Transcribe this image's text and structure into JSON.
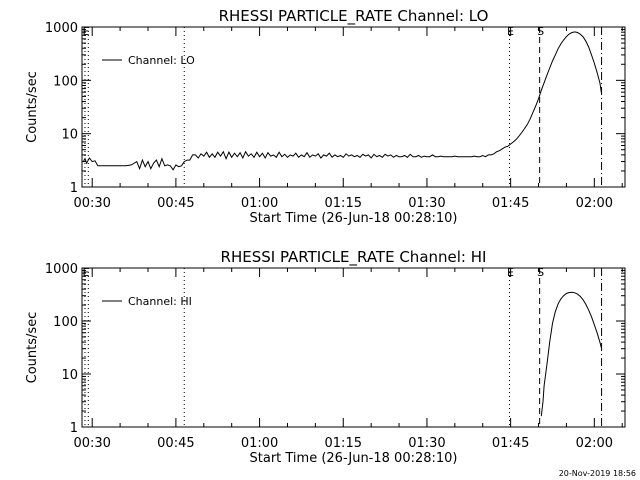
{
  "footer": {
    "timestamp": "20-Nov-2019 18:56"
  },
  "chart_data": [
    {
      "type": "line",
      "title": "RHESSI PARTICLE_RATE Channel: LO",
      "xlabel": "Start Time (26-Jun-18 00:28:10)",
      "ylabel": "Counts/sec",
      "yscale": "log",
      "ylim": [
        1,
        1000
      ],
      "xlim_minutes": [
        28.17,
        125.5
      ],
      "yticks": [
        {
          "v": 1,
          "label": "1"
        },
        {
          "v": 10,
          "label": "10"
        },
        {
          "v": 100,
          "label": "100"
        },
        {
          "v": 1000,
          "label": "1000"
        }
      ],
      "xticks": [
        {
          "m": 30,
          "label": "00:30"
        },
        {
          "m": 45,
          "label": "00:45"
        },
        {
          "m": 60,
          "label": "01:00"
        },
        {
          "m": 75,
          "label": "01:15"
        },
        {
          "m": 90,
          "label": "01:30"
        },
        {
          "m": 105,
          "label": "01:45"
        },
        {
          "m": 120,
          "label": "02:00"
        }
      ],
      "legend": {
        "label": "Channel: LO",
        "position": "top-left"
      },
      "markers": [
        {
          "m": 28.7,
          "label": "E",
          "style": "dotted"
        },
        {
          "m": 29.3,
          "label": "",
          "style": "dotted"
        },
        {
          "m": 46.5,
          "label": "",
          "style": "dotted"
        },
        {
          "m": 104.8,
          "label": "E",
          "style": "dotted"
        },
        {
          "m": 110.2,
          "label": "S",
          "style": "dashed"
        },
        {
          "m": 121.3,
          "label": "",
          "style": "dashdot"
        }
      ],
      "series": [
        {
          "name": "Channel: LO",
          "points": [
            [
              28.4,
              3
            ],
            [
              28.7,
              3.4
            ],
            [
              29.0,
              2.8
            ],
            [
              29.5,
              3.5
            ],
            [
              30.0,
              3.0
            ],
            [
              30.5,
              3.1
            ],
            [
              31.0,
              2.5
            ],
            [
              31.5,
              2.5
            ],
            [
              32.0,
              2.5
            ],
            [
              33.0,
              2.5
            ],
            [
              34.0,
              2.5
            ],
            [
              35.0,
              2.5
            ],
            [
              36.0,
              2.5
            ],
            [
              37.0,
              2.6
            ],
            [
              38.0,
              3.0
            ],
            [
              38.5,
              2.2
            ],
            [
              39.0,
              3.2
            ],
            [
              39.5,
              2.4
            ],
            [
              40.0,
              3.0
            ],
            [
              40.5,
              2.2
            ],
            [
              41.0,
              2.8
            ],
            [
              41.5,
              3.2
            ],
            [
              42.0,
              2.4
            ],
            [
              42.5,
              3.4
            ],
            [
              43.0,
              2.5
            ],
            [
              43.5,
              2.6
            ],
            [
              44.0,
              2.5
            ],
            [
              44.5,
              2.1
            ],
            [
              45.0,
              2.6
            ],
            [
              45.5,
              2.4
            ],
            [
              46.0,
              2.5
            ],
            [
              46.5,
              3.0
            ],
            [
              47.0,
              3.2
            ],
            [
              47.5,
              3.2
            ],
            [
              48.0,
              4.0
            ],
            [
              48.5,
              4.0
            ],
            [
              49.0,
              3.5
            ],
            [
              49.5,
              4.2
            ],
            [
              50.0,
              3.8
            ],
            [
              50.5,
              4.5
            ],
            [
              51.0,
              3.6
            ],
            [
              51.5,
              4.2
            ],
            [
              52.0,
              3.6
            ],
            [
              52.5,
              4.5
            ],
            [
              53.0,
              3.8
            ],
            [
              53.5,
              4.6
            ],
            [
              54.0,
              3.4
            ],
            [
              54.5,
              4.5
            ],
            [
              55.0,
              3.6
            ],
            [
              55.5,
              4.3
            ],
            [
              56.0,
              3.7
            ],
            [
              56.5,
              4.4
            ],
            [
              57.0,
              3.5
            ],
            [
              57.5,
              4.6
            ],
            [
              58.0,
              3.8
            ],
            [
              58.5,
              4.2
            ],
            [
              59.0,
              3.6
            ],
            [
              59.5,
              4.5
            ],
            [
              60.0,
              3.7
            ],
            [
              60.5,
              4.3
            ],
            [
              61.0,
              3.5
            ],
            [
              61.5,
              4.4
            ],
            [
              62.0,
              3.8
            ],
            [
              62.5,
              4.0
            ],
            [
              63.0,
              3.6
            ],
            [
              63.5,
              4.5
            ],
            [
              64.0,
              3.7
            ],
            [
              64.5,
              4.1
            ],
            [
              65.0,
              3.6
            ],
            [
              65.5,
              4.0
            ],
            [
              66.0,
              3.8
            ],
            [
              66.5,
              4.3
            ],
            [
              67.0,
              3.6
            ],
            [
              67.5,
              4.0
            ],
            [
              68.0,
              3.7
            ],
            [
              68.5,
              4.4
            ],
            [
              69.0,
              3.6
            ],
            [
              69.5,
              4.0
            ],
            [
              70.0,
              3.8
            ],
            [
              70.5,
              4.2
            ],
            [
              71.0,
              3.5
            ],
            [
              71.5,
              4.0
            ],
            [
              72.0,
              3.8
            ],
            [
              72.5,
              4.3
            ],
            [
              73.0,
              3.6
            ],
            [
              73.5,
              4.0
            ],
            [
              74.0,
              3.7
            ],
            [
              74.5,
              3.9
            ],
            [
              75.0,
              3.6
            ],
            [
              75.5,
              4.2
            ],
            [
              76.0,
              3.8
            ],
            [
              76.5,
              4.0
            ],
            [
              77.0,
              3.7
            ],
            [
              77.5,
              3.9
            ],
            [
              78.0,
              3.6
            ],
            [
              78.5,
              4.1
            ],
            [
              79.0,
              3.8
            ],
            [
              79.5,
              4.0
            ],
            [
              80.0,
              3.5
            ],
            [
              80.5,
              4.1
            ],
            [
              81.0,
              3.7
            ],
            [
              81.5,
              3.9
            ],
            [
              82.0,
              3.6
            ],
            [
              82.5,
              4.1
            ],
            [
              83.0,
              3.8
            ],
            [
              83.5,
              4.0
            ],
            [
              84.0,
              3.6
            ],
            [
              84.5,
              3.9
            ],
            [
              85.0,
              3.7
            ],
            [
              85.5,
              3.7
            ],
            [
              86.0,
              3.9
            ],
            [
              86.5,
              3.6
            ],
            [
              87.0,
              4.1
            ],
            [
              87.5,
              3.7
            ],
            [
              88.0,
              3.7
            ],
            [
              88.5,
              3.9
            ],
            [
              89.0,
              3.6
            ],
            [
              89.5,
              3.8
            ],
            [
              90.0,
              3.7
            ],
            [
              90.5,
              3.7
            ],
            [
              91.0,
              4.0
            ],
            [
              91.5,
              3.7
            ],
            [
              92.0,
              3.7
            ],
            [
              92.5,
              3.8
            ],
            [
              93.0,
              3.7
            ],
            [
              93.5,
              3.7
            ],
            [
              94.0,
              3.7
            ],
            [
              94.5,
              3.7
            ],
            [
              95.0,
              3.8
            ],
            [
              95.5,
              3.7
            ],
            [
              96.0,
              3.7
            ],
            [
              96.5,
              3.7
            ],
            [
              97.0,
              3.7
            ],
            [
              97.5,
              3.7
            ],
            [
              98.0,
              3.7
            ],
            [
              98.5,
              3.8
            ],
            [
              99.0,
              3.7
            ],
            [
              99.5,
              3.7
            ],
            [
              100.0,
              3.9
            ],
            [
              100.5,
              3.7
            ],
            [
              101.0,
              4.0
            ],
            [
              101.5,
              4.0
            ],
            [
              102.0,
              4.2
            ],
            [
              102.5,
              4.6
            ],
            [
              103.0,
              4.8
            ],
            [
              103.5,
              5.2
            ],
            [
              104.0,
              5.6
            ],
            [
              104.5,
              5.8
            ],
            [
              105.0,
              6.4
            ],
            [
              105.5,
              7.0
            ],
            [
              106.0,
              7.8
            ],
            [
              106.5,
              9.0
            ],
            [
              107.0,
              10.5
            ],
            [
              107.5,
              12.5
            ],
            [
              108.0,
              15
            ],
            [
              108.5,
              19
            ],
            [
              109.0,
              25
            ],
            [
              109.5,
              33
            ],
            [
              110.0,
              45
            ],
            [
              110.5,
              65
            ],
            [
              111.0,
              90
            ],
            [
              111.5,
              125
            ],
            [
              112.0,
              170
            ],
            [
              112.5,
              230
            ],
            [
              113.0,
              300
            ],
            [
              113.5,
              390
            ],
            [
              114.0,
              480
            ],
            [
              114.5,
              570
            ],
            [
              115.0,
              660
            ],
            [
              115.5,
              740
            ],
            [
              116.0,
              790
            ],
            [
              116.5,
              810
            ],
            [
              117.0,
              790
            ],
            [
              117.5,
              730
            ],
            [
              118.0,
              650
            ],
            [
              118.5,
              540
            ],
            [
              119.0,
              420
            ],
            [
              119.5,
              300
            ],
            [
              120.0,
              210
            ],
            [
              120.5,
              140
            ],
            [
              121.0,
              90
            ],
            [
              121.3,
              55
            ]
          ]
        }
      ]
    },
    {
      "type": "line",
      "title": "RHESSI PARTICLE_RATE Channel: HI",
      "xlabel": "Start Time (26-Jun-18 00:28:10)",
      "ylabel": "Counts/sec",
      "yscale": "log",
      "ylim": [
        1,
        1000
      ],
      "xlim_minutes": [
        28.17,
        125.5
      ],
      "yticks": [
        {
          "v": 1,
          "label": "1"
        },
        {
          "v": 10,
          "label": "10"
        },
        {
          "v": 100,
          "label": "100"
        },
        {
          "v": 1000,
          "label": "1000"
        }
      ],
      "xticks": [
        {
          "m": 30,
          "label": "00:30"
        },
        {
          "m": 45,
          "label": "00:45"
        },
        {
          "m": 60,
          "label": "01:00"
        },
        {
          "m": 75,
          "label": "01:15"
        },
        {
          "m": 90,
          "label": "01:30"
        },
        {
          "m": 105,
          "label": "01:45"
        },
        {
          "m": 120,
          "label": "02:00"
        }
      ],
      "legend": {
        "label": "Channel: HI",
        "position": "top-left"
      },
      "markers": [
        {
          "m": 28.7,
          "label": "E",
          "style": "dotted"
        },
        {
          "m": 29.3,
          "label": "",
          "style": "dotted"
        },
        {
          "m": 46.5,
          "label": "",
          "style": "dotted"
        },
        {
          "m": 104.8,
          "label": "E",
          "style": "dotted"
        },
        {
          "m": 110.2,
          "label": "S",
          "style": "dashed"
        },
        {
          "m": 121.3,
          "label": "",
          "style": "dashdot"
        }
      ],
      "series": [
        {
          "name": "Channel: HI",
          "points": [
            [
              110.5,
              1.6
            ],
            [
              110.8,
              3
            ],
            [
              111.0,
              6
            ],
            [
              111.5,
              15
            ],
            [
              112.0,
              40
            ],
            [
              112.5,
              90
            ],
            [
              113.0,
              150
            ],
            [
              113.5,
              210
            ],
            [
              114.0,
              260
            ],
            [
              114.5,
              300
            ],
            [
              115.0,
              330
            ],
            [
              115.5,
              345
            ],
            [
              116.0,
              350
            ],
            [
              116.5,
              340
            ],
            [
              117.0,
              320
            ],
            [
              117.5,
              290
            ],
            [
              118.0,
              250
            ],
            [
              118.5,
              205
            ],
            [
              119.0,
              160
            ],
            [
              119.5,
              120
            ],
            [
              120.0,
              85
            ],
            [
              120.5,
              60
            ],
            [
              121.0,
              40
            ],
            [
              121.3,
              30
            ]
          ]
        }
      ]
    }
  ]
}
